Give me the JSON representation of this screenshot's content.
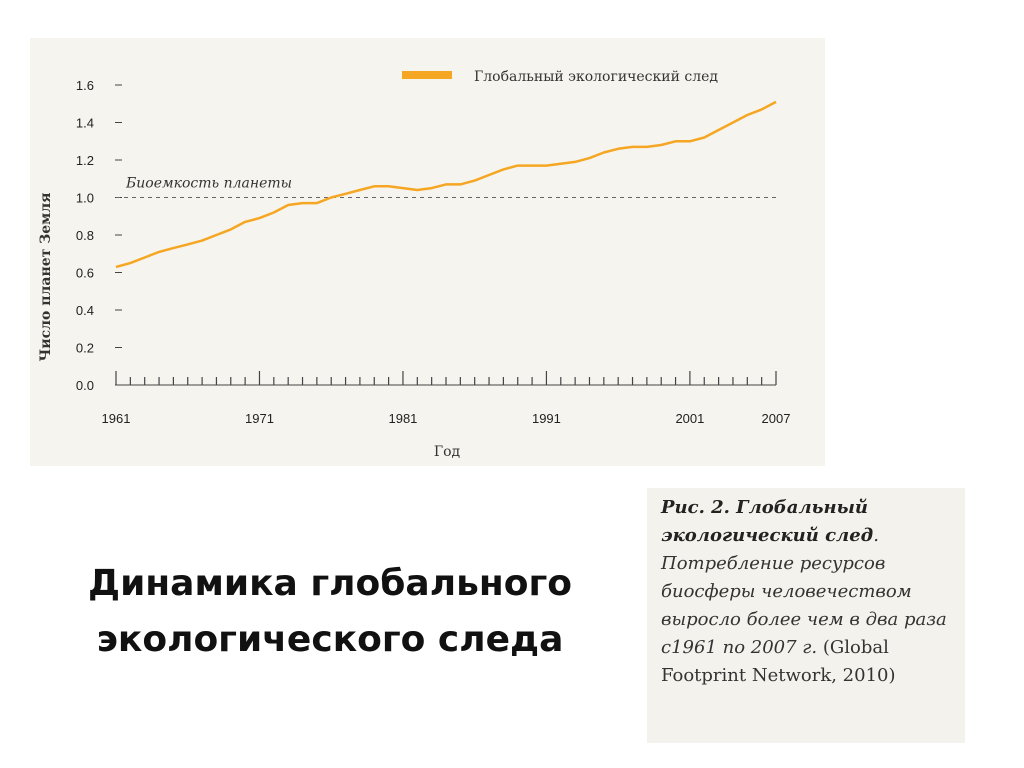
{
  "chart_data": {
    "type": "line",
    "title": "",
    "xlabel": "Год",
    "ylabel": "Число планет Земля",
    "xlim": [
      1961,
      2007
    ],
    "ylim": [
      0.0,
      1.6
    ],
    "x_ticks": [
      1961,
      1971,
      1981,
      1991,
      2001,
      2007
    ],
    "y_ticks": [
      "0.0",
      "0.2",
      "0.4",
      "0.6",
      "0.8",
      "1.0",
      "1.2",
      "1.4",
      "1.6"
    ],
    "grid": false,
    "legend_position": "top-right",
    "series": [
      {
        "name": "Глобальный экологический след",
        "color": "#f5a623",
        "x": [
          1961,
          1962,
          1963,
          1964,
          1965,
          1966,
          1967,
          1968,
          1969,
          1970,
          1971,
          1972,
          1973,
          1974,
          1975,
          1976,
          1977,
          1978,
          1979,
          1980,
          1981,
          1982,
          1983,
          1984,
          1985,
          1986,
          1987,
          1988,
          1989,
          1990,
          1991,
          1992,
          1993,
          1994,
          1995,
          1996,
          1997,
          1998,
          1999,
          2000,
          2001,
          2002,
          2003,
          2004,
          2005,
          2006,
          2007
        ],
        "values": [
          0.63,
          0.65,
          0.68,
          0.71,
          0.73,
          0.75,
          0.77,
          0.8,
          0.83,
          0.87,
          0.89,
          0.92,
          0.96,
          0.97,
          0.97,
          1.0,
          1.02,
          1.04,
          1.06,
          1.06,
          1.05,
          1.04,
          1.05,
          1.07,
          1.07,
          1.09,
          1.12,
          1.15,
          1.17,
          1.17,
          1.17,
          1.18,
          1.19,
          1.21,
          1.24,
          1.26,
          1.27,
          1.27,
          1.28,
          1.3,
          1.3,
          1.32,
          1.36,
          1.4,
          1.44,
          1.47,
          1.51
        ]
      }
    ],
    "reference_line": {
      "label": "Биоемкость планеты",
      "value": 1.0,
      "style": "dashed"
    }
  },
  "slide": {
    "title_line1": "Динамика глобального",
    "title_line2": "экологического следа"
  },
  "caption": {
    "bold_part": "Рис. 2. Глобальный экологический след",
    "italic_part": ". Потребление ресурсов биосферы человечеством выросло более чем в два раза с1961 по 2007 г.",
    "regular_part": " (Global Footprint Network, 2010)"
  }
}
